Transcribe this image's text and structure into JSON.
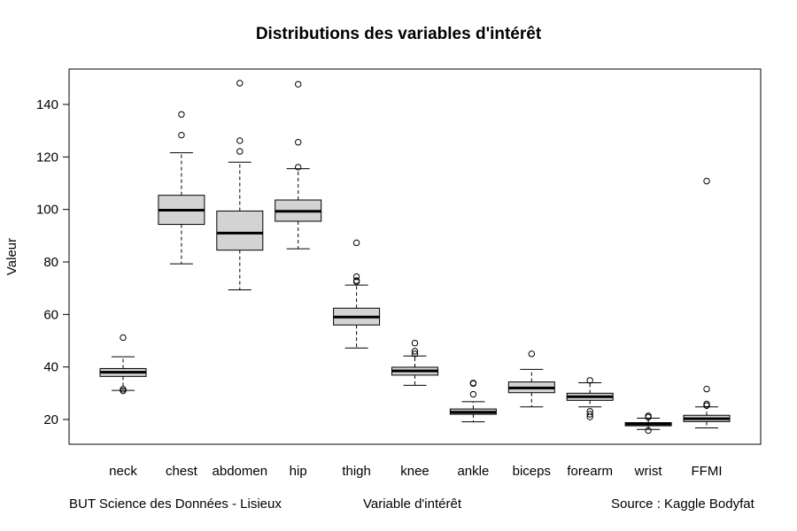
{
  "chart_data": {
    "type": "boxplot",
    "title": "Distributions des variables d'intérêt",
    "xlabel": "Variable d'intérêt",
    "ylabel": "Valeur",
    "ylim": [
      10,
      150
    ],
    "yticks": [
      20,
      40,
      60,
      80,
      100,
      120,
      140
    ],
    "grid": false,
    "box_color": "#d3d3d3",
    "categories": [
      "neck",
      "chest",
      "abdomen",
      "hip",
      "thigh",
      "knee",
      "ankle",
      "biceps",
      "forearm",
      "wrist",
      "FFMI"
    ],
    "boxes": [
      {
        "name": "neck",
        "whisker_low": 31.1,
        "q1": 36.4,
        "median": 38.0,
        "q3": 39.4,
        "whisker_high": 43.9,
        "outliers": [
          51.2,
          31.5,
          30.9
        ]
      },
      {
        "name": "chest",
        "whisker_low": 79.3,
        "q1": 94.3,
        "median": 99.7,
        "q3": 105.4,
        "whisker_high": 121.6,
        "outliers": [
          128.3,
          136.2
        ]
      },
      {
        "name": "abdomen",
        "whisker_low": 69.4,
        "q1": 84.5,
        "median": 91.0,
        "q3": 99.4,
        "whisker_high": 118.0,
        "outliers": [
          122.1,
          126.2,
          148.1
        ]
      },
      {
        "name": "hip",
        "whisker_low": 85.0,
        "q1": 95.5,
        "median": 99.3,
        "q3": 103.6,
        "whisker_high": 115.5,
        "outliers": [
          116.1,
          125.6,
          147.7
        ]
      },
      {
        "name": "thigh",
        "whisker_low": 47.2,
        "q1": 56.0,
        "median": 59.0,
        "q3": 62.4,
        "whisker_high": 71.2,
        "outliers": [
          72.5,
          72.9,
          74.4,
          87.3
        ]
      },
      {
        "name": "knee",
        "whisker_low": 33.0,
        "q1": 36.9,
        "median": 38.5,
        "q3": 39.9,
        "whisker_high": 44.2,
        "outliers": [
          45.0,
          46.0,
          49.1
        ]
      },
      {
        "name": "ankle",
        "whisker_low": 19.1,
        "q1": 22.0,
        "median": 22.8,
        "q3": 24.0,
        "whisker_high": 26.8,
        "outliers": [
          29.6,
          33.7,
          33.9
        ]
      },
      {
        "name": "biceps",
        "whisker_low": 24.8,
        "q1": 30.2,
        "median": 32.0,
        "q3": 34.3,
        "whisker_high": 39.1,
        "outliers": [
          45.0
        ]
      },
      {
        "name": "forearm",
        "whisker_low": 24.8,
        "q1": 27.3,
        "median": 28.7,
        "q3": 30.0,
        "whisker_high": 34.0,
        "outliers": [
          21.0,
          22.0,
          23.1,
          34.9
        ]
      },
      {
        "name": "wrist",
        "whisker_low": 16.2,
        "q1": 17.6,
        "median": 18.3,
        "q3": 18.8,
        "whisker_high": 20.5,
        "outliers": [
          15.8,
          21.4,
          20.9
        ]
      },
      {
        "name": "FFMI",
        "whisker_low": 16.8,
        "q1": 19.2,
        "median": 20.3,
        "q3": 21.6,
        "whisker_high": 24.8,
        "outliers": [
          25.3,
          25.9,
          31.6,
          110.8
        ]
      }
    ]
  },
  "captions": {
    "left": "BUT Science des Données - Lisieux",
    "right": "Source : Kaggle Bodyfat"
  }
}
